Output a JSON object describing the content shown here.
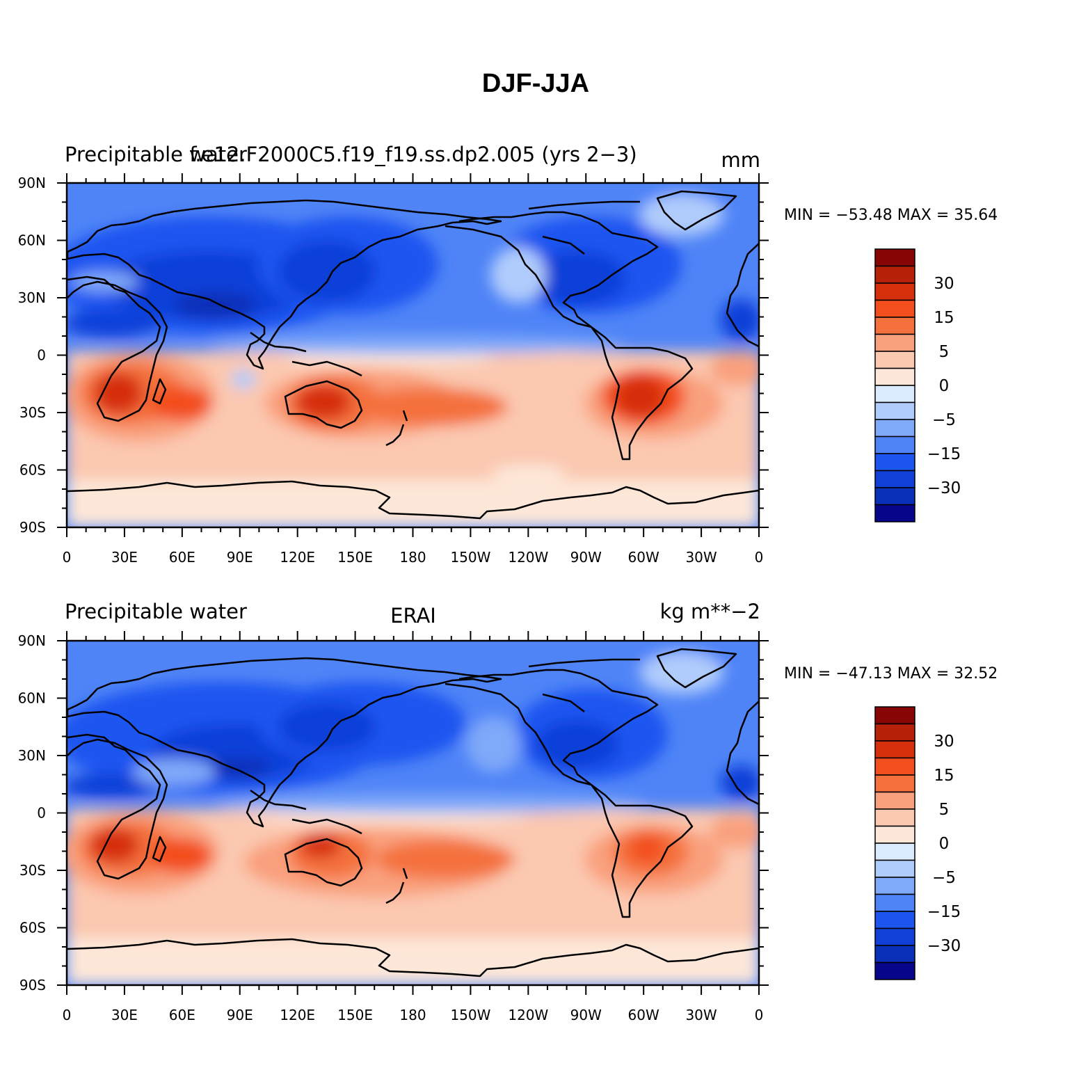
{
  "figure_title": "DJF-JJA",
  "colors": {
    "levels": [
      "#07058a",
      "#0a2fb8",
      "#1140d8",
      "#1d55f0",
      "#4f84f7",
      "#7fa9f9",
      "#b0ccfc",
      "#d9ebfd",
      "#fde7d8",
      "#fbc8b0",
      "#f9a07d",
      "#f4713e",
      "#f34e1d",
      "#d62f0c",
      "#b52207",
      "#880505"
    ],
    "outline": "#000000",
    "continent": "#000000"
  },
  "colorbar_labels": [
    "30",
    "15",
    "5",
    "0",
    "−5",
    "−15",
    "−30"
  ],
  "x_ticks": [
    "0",
    "30E",
    "60E",
    "90E",
    "120E",
    "150E",
    "180",
    "150W",
    "120W",
    "90W",
    "60W",
    "30W",
    "0"
  ],
  "y_ticks": [
    "90N",
    "60N",
    "30N",
    "0",
    "30S",
    "60S",
    "90S"
  ],
  "panels": [
    {
      "left_title": "Precipitable water",
      "center_title": "f.e12.F2000C5.f19_f19.ss.dp2.005 (yrs 2−3)",
      "right_title": "mm",
      "minmax": "MIN = −53.48 MAX =   35.64"
    },
    {
      "left_title": "Precipitable water",
      "center_title": "ERAI",
      "right_title": "kg m**−2",
      "minmax": "MIN = −47.13 MAX =   32.52"
    }
  ]
}
